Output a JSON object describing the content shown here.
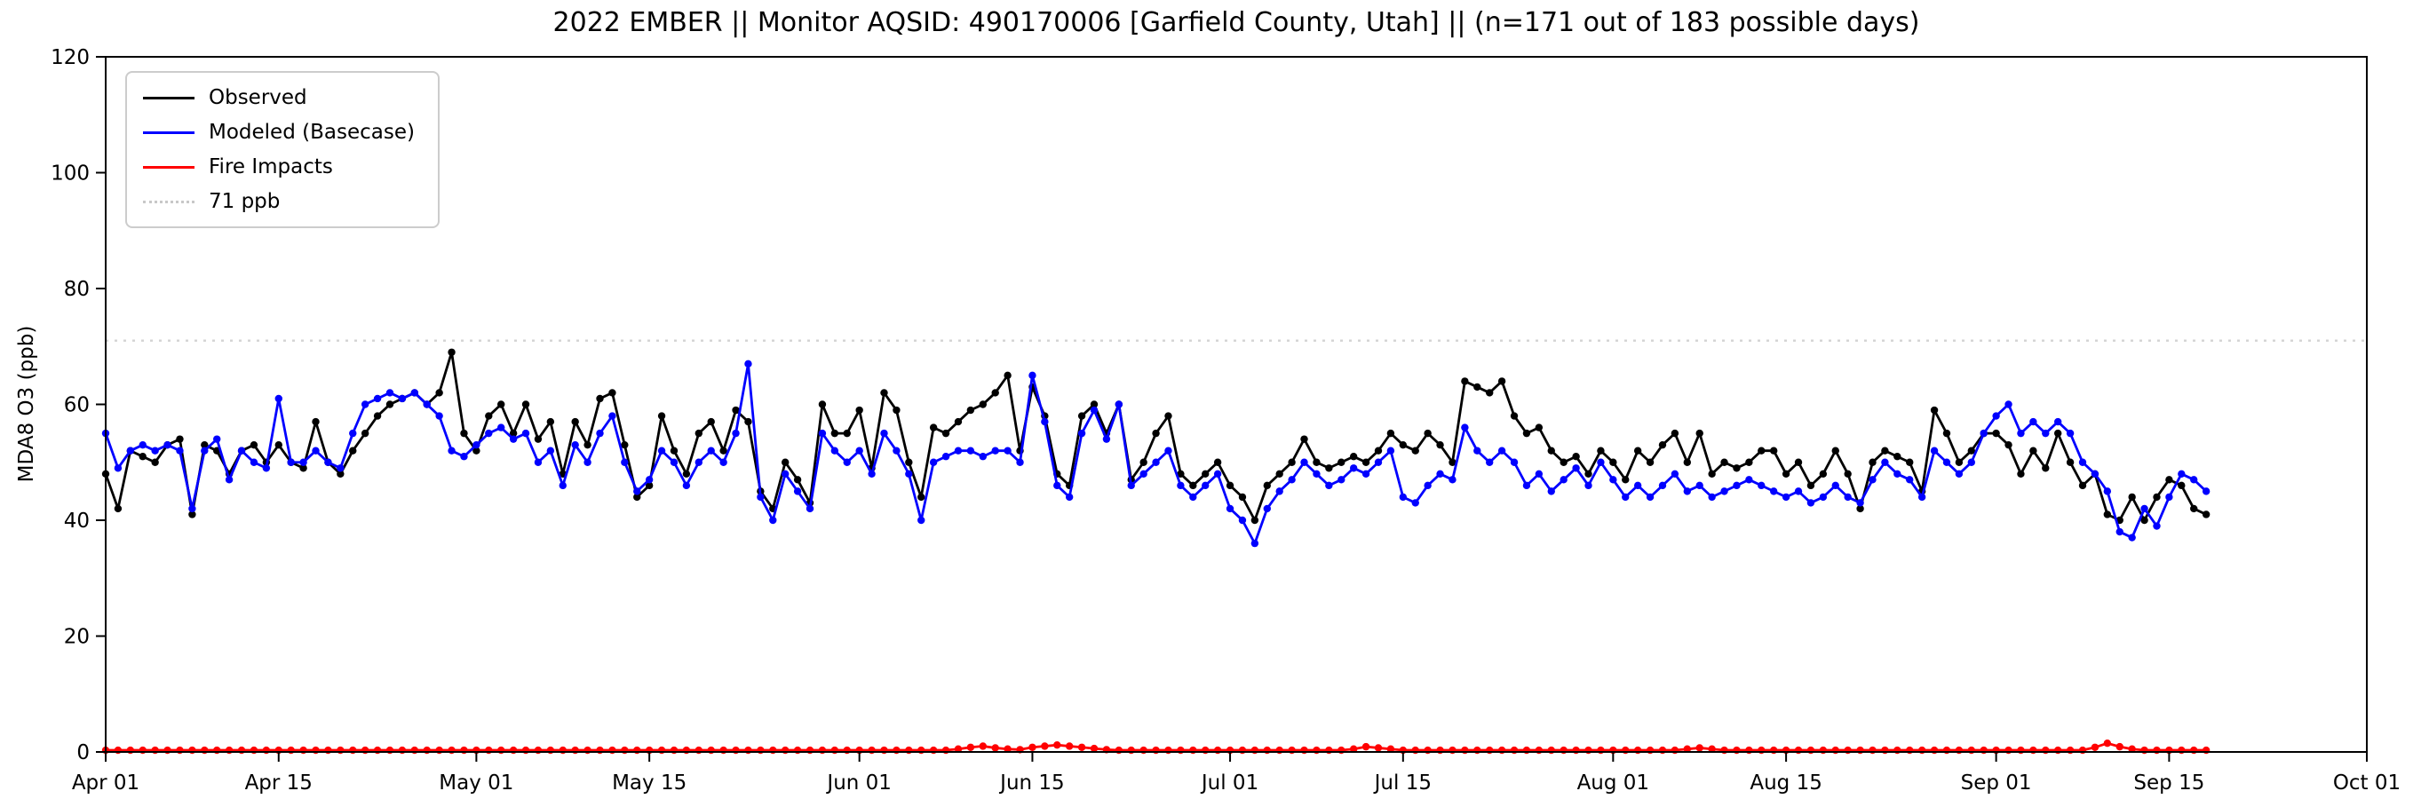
{
  "chart_data": {
    "type": "line",
    "title": "2022 EMBER || Monitor AQSID: 490170006 [Garfield County, Utah] || (n=171 out of 183 possible days)",
    "xlabel": "",
    "ylabel": "MDA8 O3 (ppb)",
    "ylim": [
      0,
      120
    ],
    "yticks": [
      0,
      20,
      40,
      60,
      80,
      100,
      120
    ],
    "xlim_days": [
      0,
      183
    ],
    "x_start_day": 0,
    "x_step": 1,
    "grid": false,
    "legend_position": "upper left",
    "threshold": {
      "value": 71,
      "label": "71 ppb",
      "color": "#d3d3d3",
      "style": "dotted"
    },
    "xticks": [
      {
        "day": 0,
        "label": "Apr 01"
      },
      {
        "day": 14,
        "label": "Apr 15"
      },
      {
        "day": 30,
        "label": "May 01"
      },
      {
        "day": 44,
        "label": "May 15"
      },
      {
        "day": 61,
        "label": "Jun 01"
      },
      {
        "day": 75,
        "label": "Jun 15"
      },
      {
        "day": 91,
        "label": "Jul 01"
      },
      {
        "day": 105,
        "label": "Jul 15"
      },
      {
        "day": 122,
        "label": "Aug 01"
      },
      {
        "day": 136,
        "label": "Aug 15"
      },
      {
        "day": 153,
        "label": "Sep 01"
      },
      {
        "day": 167,
        "label": "Sep 15"
      },
      {
        "day": 183,
        "label": "Oct 01"
      }
    ],
    "series": [
      {
        "name": "Observed",
        "slug": "observed",
        "color": "#000000",
        "values": [
          48,
          42,
          52,
          51,
          50,
          53,
          54,
          41,
          53,
          52,
          48,
          52,
          53,
          50,
          53,
          50,
          49,
          57,
          50,
          48,
          52,
          55,
          58,
          60,
          61,
          62,
          60,
          62,
          69,
          55,
          52,
          58,
          60,
          55,
          60,
          54,
          57,
          48,
          57,
          53,
          61,
          62,
          53,
          44,
          46,
          58,
          52,
          48,
          55,
          57,
          52,
          59,
          57,
          45,
          42,
          50,
          47,
          43,
          60,
          55,
          55,
          59,
          49,
          62,
          59,
          50,
          44,
          56,
          55,
          57,
          59,
          60,
          62,
          65,
          52,
          63,
          58,
          48,
          46,
          58,
          60,
          55,
          60,
          47,
          50,
          55,
          58,
          48,
          46,
          48,
          50,
          46,
          44,
          40,
          46,
          48,
          50,
          54,
          50,
          49,
          50,
          51,
          50,
          52,
          55,
          53,
          52,
          55,
          53,
          50,
          64,
          63,
          62,
          64,
          58,
          55,
          56,
          52,
          50,
          51,
          48,
          52,
          50,
          47,
          52,
          50,
          53,
          55,
          50,
          55,
          48,
          50,
          49,
          50,
          52,
          52,
          48,
          50,
          46,
          48,
          52,
          48,
          42,
          50,
          52,
          51,
          50,
          45,
          59,
          55,
          50,
          52,
          55,
          55,
          53,
          48,
          52,
          49,
          55,
          50,
          46,
          48,
          41,
          40,
          44,
          40,
          44,
          47,
          46,
          42,
          41
        ]
      },
      {
        "name": "Modeled (Basecase)",
        "slug": "modeled-basecase",
        "color": "#0000ff",
        "values": [
          55,
          49,
          52,
          53,
          52,
          53,
          52,
          42,
          52,
          54,
          47,
          52,
          50,
          49,
          61,
          50,
          50,
          52,
          50,
          49,
          55,
          60,
          61,
          62,
          61,
          62,
          60,
          58,
          52,
          51,
          53,
          55,
          56,
          54,
          55,
          50,
          52,
          46,
          53,
          50,
          55,
          58,
          50,
          45,
          47,
          52,
          50,
          46,
          50,
          52,
          50,
          55,
          67,
          44,
          40,
          48,
          45,
          42,
          55,
          52,
          50,
          52,
          48,
          55,
          52,
          48,
          40,
          50,
          51,
          52,
          52,
          51,
          52,
          52,
          50,
          65,
          57,
          46,
          44,
          55,
          59,
          54,
          60,
          46,
          48,
          50,
          52,
          46,
          44,
          46,
          48,
          42,
          40,
          36,
          42,
          45,
          47,
          50,
          48,
          46,
          47,
          49,
          48,
          50,
          52,
          44,
          43,
          46,
          48,
          47,
          56,
          52,
          50,
          52,
          50,
          46,
          48,
          45,
          47,
          49,
          46,
          50,
          47,
          44,
          46,
          44,
          46,
          48,
          45,
          46,
          44,
          45,
          46,
          47,
          46,
          45,
          44,
          45,
          43,
          44,
          46,
          44,
          43,
          47,
          50,
          48,
          47,
          44,
          52,
          50,
          48,
          50,
          55,
          58,
          60,
          55,
          57,
          55,
          57,
          55,
          50,
          48,
          45,
          38,
          37,
          42,
          39,
          44,
          48,
          47,
          45
        ]
      },
      {
        "name": "Fire Impacts",
        "slug": "fire-impacts",
        "color": "#ff0000",
        "values": [
          0.3,
          0.3,
          0.3,
          0.3,
          0.3,
          0.3,
          0.3,
          0.3,
          0.3,
          0.3,
          0.3,
          0.3,
          0.3,
          0.3,
          0.3,
          0.3,
          0.3,
          0.3,
          0.3,
          0.3,
          0.3,
          0.3,
          0.3,
          0.3,
          0.3,
          0.3,
          0.3,
          0.3,
          0.3,
          0.3,
          0.3,
          0.3,
          0.3,
          0.3,
          0.3,
          0.3,
          0.3,
          0.3,
          0.3,
          0.3,
          0.3,
          0.3,
          0.3,
          0.3,
          0.3,
          0.3,
          0.3,
          0.3,
          0.3,
          0.3,
          0.3,
          0.3,
          0.3,
          0.3,
          0.3,
          0.3,
          0.3,
          0.3,
          0.3,
          0.3,
          0.3,
          0.3,
          0.3,
          0.3,
          0.3,
          0.3,
          0.3,
          0.3,
          0.3,
          0.5,
          0.8,
          1.0,
          0.7,
          0.5,
          0.4,
          0.8,
          1.0,
          1.2,
          1.0,
          0.8,
          0.6,
          0.4,
          0.3,
          0.3,
          0.3,
          0.3,
          0.3,
          0.3,
          0.3,
          0.3,
          0.3,
          0.3,
          0.3,
          0.3,
          0.3,
          0.3,
          0.3,
          0.3,
          0.3,
          0.3,
          0.3,
          0.5,
          0.9,
          0.7,
          0.5,
          0.3,
          0.3,
          0.3,
          0.3,
          0.3,
          0.3,
          0.3,
          0.3,
          0.3,
          0.3,
          0.3,
          0.3,
          0.3,
          0.3,
          0.3,
          0.3,
          0.3,
          0.3,
          0.3,
          0.3,
          0.3,
          0.3,
          0.3,
          0.5,
          0.7,
          0.5,
          0.3,
          0.3,
          0.3,
          0.3,
          0.3,
          0.3,
          0.3,
          0.3,
          0.3,
          0.3,
          0.3,
          0.3,
          0.3,
          0.3,
          0.3,
          0.3,
          0.3,
          0.3,
          0.3,
          0.3,
          0.3,
          0.3,
          0.3,
          0.3,
          0.3,
          0.3,
          0.3,
          0.3,
          0.3,
          0.3,
          0.8,
          1.5,
          0.9,
          0.5,
          0.3,
          0.3,
          0.3,
          0.3,
          0.3,
          0.3
        ]
      }
    ],
    "legend": [
      {
        "label": "Observed",
        "slug": "observed",
        "color": "#000000",
        "style": "solid"
      },
      {
        "label": "Modeled (Basecase)",
        "slug": "modeled-basecase",
        "color": "#0000ff",
        "style": "solid"
      },
      {
        "label": "Fire Impacts",
        "slug": "fire-impacts",
        "color": "#ff0000",
        "style": "solid"
      },
      {
        "label": "71 ppb",
        "slug": "threshold-71ppb",
        "color": "#c8c8c8",
        "style": "dotted"
      }
    ]
  }
}
